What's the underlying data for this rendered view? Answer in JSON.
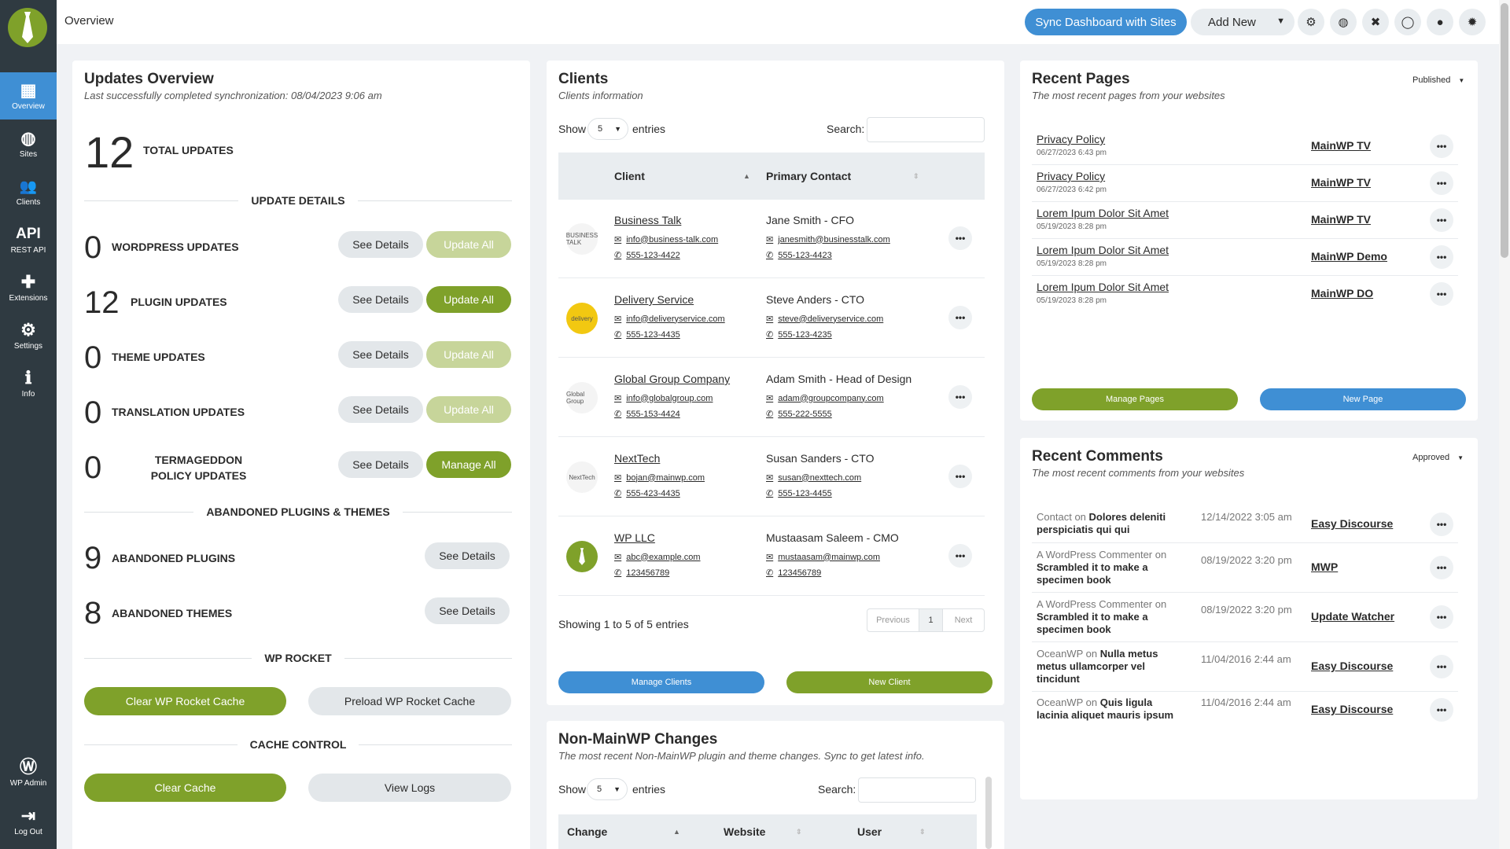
{
  "app": {
    "title": "Overview",
    "colors": {
      "sidebar": "#2f3a41",
      "accent_blue": "#3f8fd4",
      "accent_green": "#7fa12a"
    }
  },
  "sidebar": {
    "items": [
      {
        "label": "Overview",
        "icon": "grid-icon",
        "glyph": "▦"
      },
      {
        "label": "Sites",
        "icon": "globe-icon",
        "glyph": "◍"
      },
      {
        "label": "Clients",
        "icon": "users-icon",
        "glyph": "👥"
      },
      {
        "label": "REST API",
        "icon": "api-icon",
        "glyph": "API"
      },
      {
        "label": "Extensions",
        "icon": "puzzle-icon",
        "glyph": "✚"
      },
      {
        "label": "Settings",
        "icon": "gear-icon",
        "glyph": "⚙"
      },
      {
        "label": "Info",
        "icon": "info-icon",
        "glyph": "ℹ"
      }
    ],
    "bottom": [
      {
        "label": "WP Admin",
        "icon": "wordpress-icon",
        "glyph": "Ⓦ"
      },
      {
        "label": "Log Out",
        "icon": "logout-icon",
        "glyph": "⇥"
      }
    ]
  },
  "header": {
    "sync_label": "Sync Dashboard with Sites",
    "add_new_label": "Add New"
  },
  "updates": {
    "title": "Updates Overview",
    "subtitle": "Last successfully completed synchronization: 08/04/2023 9:06 am",
    "total": "12",
    "total_label": "TOTAL UPDATES",
    "details_heading": "UPDATE DETAILS",
    "rows": [
      {
        "count": "0",
        "label": "WORDPRESS UPDATES",
        "see": "See Details",
        "action": "Update All"
      },
      {
        "count": "12",
        "label": "PLUGIN UPDATES",
        "see": "See Details",
        "action": "Update All"
      },
      {
        "count": "0",
        "label": "THEME UPDATES",
        "see": "See Details",
        "action": "Update All"
      },
      {
        "count": "0",
        "label": "TRANSLATION UPDATES",
        "see": "See Details",
        "action": "Update All"
      },
      {
        "count": "0",
        "label": "TERMAGEDDON POLICY UPDATES",
        "see": "See Details",
        "action": "Manage All"
      }
    ],
    "abandoned_heading": "ABANDONED PLUGINS & THEMES",
    "abandoned": [
      {
        "count": "9",
        "label": "ABANDONED PLUGINS",
        "see": "See Details"
      },
      {
        "count": "8",
        "label": "ABANDONED THEMES",
        "see": "See Details"
      }
    ],
    "wprocket_heading": "WP ROCKET",
    "clear_rocket": "Clear WP Rocket Cache",
    "preload_rocket": "Preload WP Rocket Cache",
    "cache_heading": "CACHE CONTROL",
    "clear_cache": "Clear Cache",
    "view_logs": "View Logs"
  },
  "clients": {
    "title": "Clients",
    "subtitle": "Clients information",
    "show": "Show",
    "entries_value": "5",
    "entries": "entries",
    "search": "Search:",
    "columns": [
      "Client",
      "Primary Contact"
    ],
    "rows": [
      {
        "name": "Business Talk",
        "email": "info@business-talk.com",
        "phone": "555-123-4422",
        "contact": "Jane Smith - CFO",
        "c_email": "janesmith@businesstalk.com",
        "c_phone": "555-123-4423",
        "logo": "BUSINESS TALK"
      },
      {
        "name": "Delivery Service",
        "email": "info@deliveryservice.com",
        "phone": "555-123-4435",
        "contact": "Steve Anders - CTO",
        "c_email": "steve@deliveryservice.com",
        "c_phone": "555-123-4235",
        "logo": "delivery"
      },
      {
        "name": "Global Group Company",
        "email": "info@globalgroup.com",
        "phone": "555-153-4424",
        "contact": "Adam Smith - Head of Design",
        "c_email": "adam@groupcompany.com",
        "c_phone": "555-222-5555",
        "logo": "Global Group"
      },
      {
        "name": "NextTech",
        "email": "bojan@mainwp.com",
        "phone": "555-423-4435",
        "contact": "Susan Sanders - CTO",
        "c_email": "susan@nexttech.com",
        "c_phone": "555-123-4455",
        "logo": "NextTech"
      },
      {
        "name": "WP LLC",
        "email": "abc@example.com",
        "phone": "123456789",
        "contact": "Mustaasam Saleem - CMO",
        "c_email": "mustaasam@mainwp.com",
        "c_phone": "123456789",
        "logo": ""
      }
    ],
    "showing": "Showing 1 to 5 of 5 entries",
    "prev": "Previous",
    "page": "1",
    "next": "Next",
    "manage": "Manage Clients",
    "new": "New Client"
  },
  "changes": {
    "title": "Non-MainWP Changes",
    "subtitle": "The most recent Non-MainWP plugin and theme changes. Sync to get latest info.",
    "show": "Show",
    "entries_value": "5",
    "entries": "entries",
    "search": "Search:",
    "columns": [
      "Change",
      "Website",
      "User"
    ]
  },
  "pages": {
    "title": "Recent Pages",
    "subtitle": "The most recent pages from your websites",
    "filter": "Published",
    "rows": [
      {
        "name": "Privacy Policy",
        "date": "06/27/2023 6:43 pm",
        "site": "MainWP TV"
      },
      {
        "name": "Privacy Policy",
        "date": "06/27/2023 6:42 pm",
        "site": "MainWP TV"
      },
      {
        "name": "Lorem Ipum Dolor Sit Amet",
        "date": "05/19/2023 8:28 pm",
        "site": "MainWP TV"
      },
      {
        "name": "Lorem Ipum Dolor Sit Amet",
        "date": "05/19/2023 8:28 pm",
        "site": "MainWP Demo"
      },
      {
        "name": "Lorem Ipum Dolor Sit Amet",
        "date": "05/19/2023 8:28 pm",
        "site": "MainWP DO"
      }
    ],
    "manage": "Manage Pages",
    "new": "New Page"
  },
  "comments": {
    "title": "Recent Comments",
    "subtitle": "The most recent comments from your websites",
    "filter": "Approved",
    "on": "on",
    "rows": [
      {
        "author": "Contact",
        "post": "Dolores deleniti perspiciatis qui qui",
        "date": "12/14/2022 3:05 am",
        "site": "Easy Discourse"
      },
      {
        "author": "A WordPress Commenter",
        "post": "Scrambled it to make a specimen book",
        "date": "08/19/2022 3:20 pm",
        "site": "MWP"
      },
      {
        "author": "A WordPress Commenter",
        "post": "Scrambled it to make a specimen book",
        "date": "08/19/2022 3:20 pm",
        "site": "Update Watcher"
      },
      {
        "author": "OceanWP",
        "post": "Nulla metus metus ullamcorper vel tincidunt",
        "date": "11/04/2016 2:44 am",
        "site": "Easy Discourse"
      },
      {
        "author": "OceanWP",
        "post": "Quis ligula lacinia aliquet mauris ipsum",
        "date": "11/04/2016 2:44 am",
        "site": "Easy Discourse"
      }
    ]
  }
}
